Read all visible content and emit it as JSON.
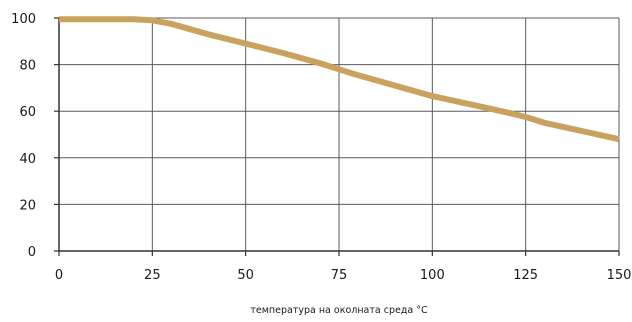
{
  "chart_data": {
    "type": "line",
    "title": "",
    "xlabel": "температура на околната среда °C",
    "ylabel": "",
    "xlim": [
      0,
      150
    ],
    "ylim": [
      0,
      100
    ],
    "x_ticks": [
      0,
      25,
      50,
      75,
      100,
      125,
      150
    ],
    "y_ticks": [
      0,
      20,
      40,
      60,
      80,
      100
    ],
    "x_tick_labels": [
      "0",
      "25",
      "50",
      "75",
      "100",
      "125",
      "150"
    ],
    "y_tick_labels": [
      "0",
      "20",
      "40",
      "60",
      "80",
      "100"
    ],
    "grid": true,
    "legend": "none",
    "series": [
      {
        "color": "#c8a25e",
        "x": [
          0,
          10,
          20,
          25,
          30,
          40,
          50,
          60,
          70,
          75,
          80,
          90,
          100,
          110,
          120,
          125,
          130,
          140,
          150
        ],
        "y": [
          99.5,
          99.5,
          99.5,
          99,
          97.5,
          93,
          89,
          85,
          80.5,
          78,
          75.5,
          71,
          66.5,
          63,
          59.5,
          57.5,
          55,
          51.5,
          48
        ]
      }
    ]
  }
}
